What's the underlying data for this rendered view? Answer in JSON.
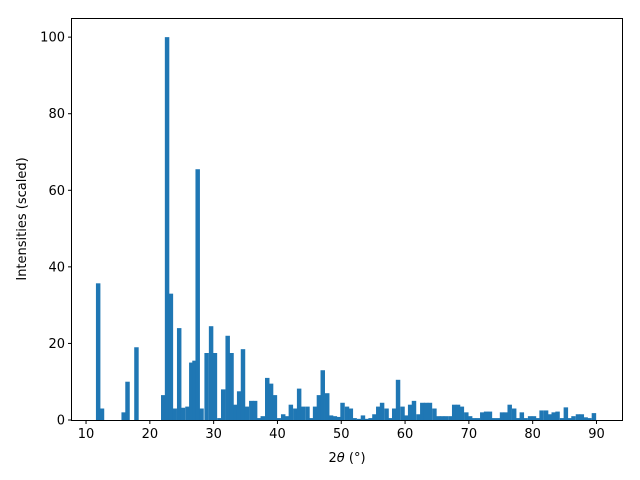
{
  "chart_data": {
    "type": "bar",
    "xlabel_prefix": "2",
    "xlabel_symbol": "θ",
    "xlabel_unit": " (°)",
    "ylabel": "Intensities (scaled)",
    "xlim": [
      7.8,
      94
    ],
    "ylim": [
      0,
      105
    ],
    "xticks": [
      10,
      20,
      30,
      40,
      50,
      60,
      70,
      80,
      90
    ],
    "yticks": [
      0,
      20,
      40,
      60,
      80,
      100
    ],
    "color": "#1f77b4",
    "bar_width": 0.7,
    "grid": false,
    "x": [
      11.9,
      12.5,
      15.9,
      16.5,
      17.9,
      22.1,
      22.7,
      23.3,
      23.9,
      24.6,
      25.2,
      25.9,
      26.5,
      27.0,
      27.5,
      28.1,
      28.9,
      29.6,
      30.2,
      30.9,
      31.5,
      32.2,
      32.8,
      33.4,
      34.0,
      34.6,
      35.2,
      35.9,
      36.5,
      37.1,
      37.7,
      38.4,
      39.0,
      39.6,
      40.2,
      40.9,
      41.5,
      42.1,
      42.8,
      43.4,
      44.0,
      44.7,
      45.3,
      45.9,
      46.5,
      47.1,
      47.8,
      48.4,
      49.0,
      49.6,
      50.2,
      50.9,
      51.5,
      52.1,
      52.8,
      53.4,
      54.0,
      54.6,
      55.2,
      55.8,
      56.4,
      57.1,
      57.7,
      58.3,
      58.9,
      59.6,
      60.2,
      60.8,
      61.4,
      62.1,
      62.7,
      63.3,
      63.9,
      64.6,
      65.2,
      65.8,
      66.4,
      67.1,
      67.7,
      68.3,
      68.9,
      69.6,
      70.2,
      70.8,
      71.4,
      72.1,
      72.7,
      73.3,
      73.9,
      74.6,
      75.2,
      75.8,
      76.4,
      77.1,
      77.7,
      78.3,
      78.9,
      79.6,
      80.2,
      80.8,
      81.4,
      82.1,
      82.7,
      83.3,
      83.9,
      84.6,
      85.2,
      85.8,
      86.4,
      87.1,
      87.7,
      88.3,
      88.9,
      89.6
    ],
    "values": [
      35.7,
      3.0,
      2.0,
      10.0,
      19.0,
      6.5,
      100.0,
      33.0,
      3.0,
      24.0,
      3.2,
      3.5,
      15.0,
      15.5,
      65.5,
      3.0,
      17.5,
      24.5,
      17.5,
      0.5,
      8.0,
      22.0,
      17.5,
      4.0,
      7.5,
      18.5,
      3.5,
      5.0,
      5.0,
      0.5,
      1.0,
      11.0,
      9.5,
      6.5,
      0.5,
      1.5,
      1.0,
      4.0,
      3.0,
      8.2,
      3.5,
      3.5,
      0.5,
      3.5,
      6.5,
      13.0,
      7.0,
      1.2,
      1.0,
      0.8,
      4.5,
      3.5,
      3.0,
      0.5,
      0.3,
      1.2,
      0.3,
      0.5,
      1.5,
      3.5,
      4.5,
      3.0,
      0.5,
      3.0,
      10.5,
      3.5,
      1.2,
      4.0,
      5.0,
      1.5,
      4.5,
      4.5,
      4.5,
      3.0,
      1.0,
      1.0,
      1.0,
      1.0,
      4.0,
      4.0,
      3.5,
      2.0,
      1.0,
      0.5,
      0.5,
      2.0,
      2.2,
      2.2,
      0.5,
      0.5,
      2.0,
      2.0,
      4.0,
      3.0,
      0.5,
      2.0,
      0.5,
      1.0,
      1.0,
      0.5,
      2.5,
      2.5,
      1.5,
      2.0,
      2.2,
      0.5,
      3.3,
      0.5,
      1.0,
      1.5,
      1.5,
      0.7,
      0.5,
      1.8
    ]
  }
}
